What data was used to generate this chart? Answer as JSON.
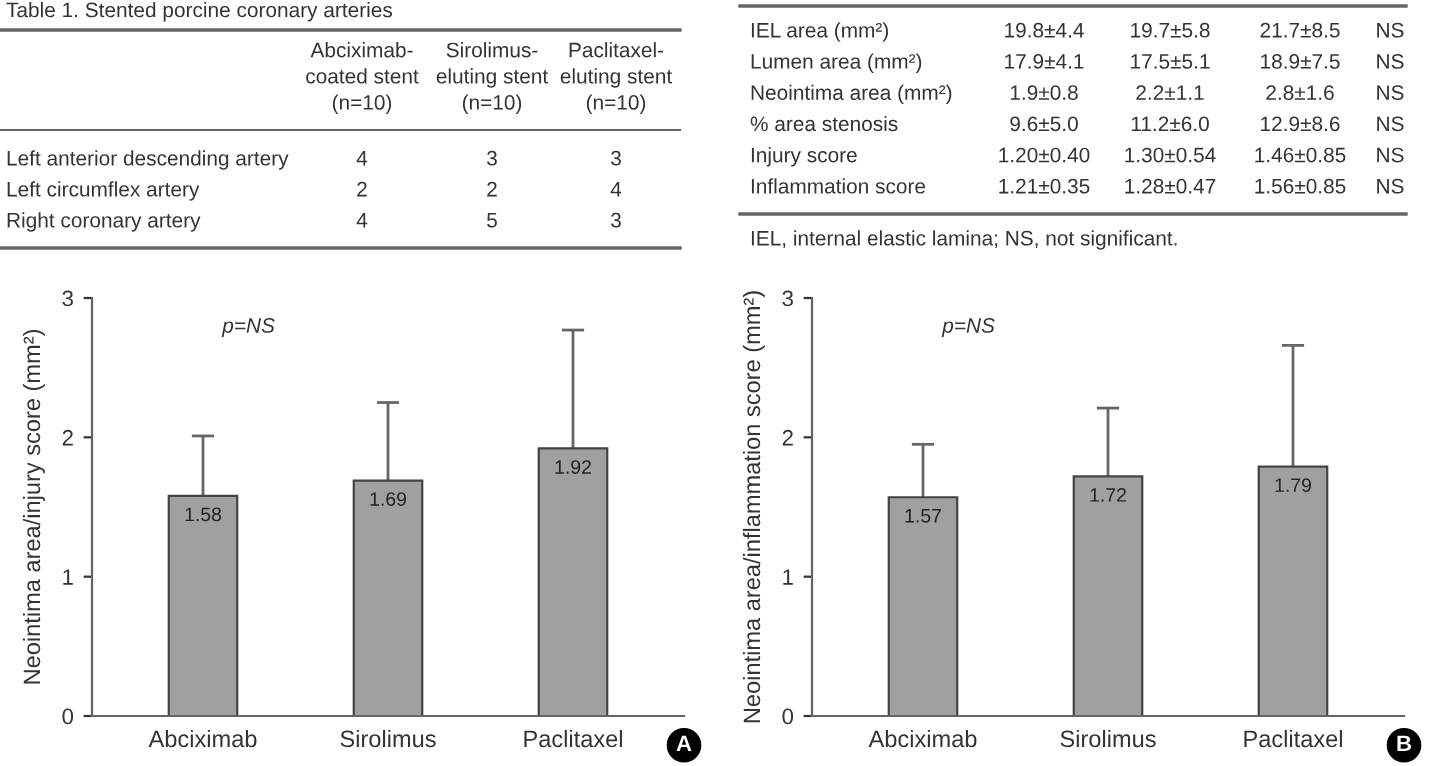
{
  "chart_data": [
    {
      "type": "other",
      "title": "Table 1. Stented porcine coronary arteries",
      "categories": [
        "Abciximab-\ncoated stent\n(n=10)",
        "Sirolimus-\neluting stent\n(n=10)",
        "Paclitaxel-\neluting stent\n(n=10)"
      ],
      "y_categories": [
        "Left anterior descending artery",
        "Left circumflex artery",
        "Right coronary artery"
      ],
      "cell_labels": [
        [
          "4",
          "3",
          "3"
        ],
        [
          "2",
          "2",
          "4"
        ],
        [
          "4",
          "5",
          "3"
        ]
      ]
    },
    {
      "type": "other",
      "y_categories": [
        "IEL area (mm²)",
        "Lumen area (mm²)",
        "Neointima area (mm²)",
        "% area stenosis",
        "Injury score",
        "Inflammation score"
      ],
      "cell_labels": [
        [
          "19.8±4.4",
          "19.7±5.8",
          "21.7±8.5",
          "NS"
        ],
        [
          "17.9±4.1",
          "17.5±5.1",
          "18.9±7.5",
          "NS"
        ],
        [
          "1.9±0.8",
          "2.2±1.1",
          "2.8±1.6",
          "NS"
        ],
        [
          "9.6±5.0",
          "11.2±6.0",
          "12.9±8.6",
          "NS"
        ],
        [
          "1.20±0.40",
          "1.30±0.54",
          "1.46±0.85",
          "NS"
        ],
        [
          "1.21±0.35",
          "1.28±0.47",
          "1.56±0.85",
          "NS"
        ]
      ],
      "annotations": [
        "IEL, internal elastic lamina; NS, not significant."
      ]
    },
    {
      "type": "bar",
      "ylabel": "Neointima area/injury score (mm²)",
      "categories": [
        "Abciximab",
        "Sirolimus",
        "Paclitaxel"
      ],
      "values": [
        1.58,
        1.69,
        1.92
      ],
      "errors": [
        0.43,
        0.56,
        0.85
      ],
      "color": "#a0a0a0",
      "ylim": [
        0,
        3
      ],
      "yticks": [
        0,
        1,
        2,
        3
      ],
      "data_labels": true,
      "grid": false,
      "legend": false,
      "annotations": [
        "p=NS",
        "A"
      ]
    },
    {
      "type": "bar",
      "ylabel": "Neointima area/inflammation score (mm²)",
      "categories": [
        "Abciximab",
        "Sirolimus",
        "Paclitaxel"
      ],
      "values": [
        1.57,
        1.72,
        1.79
      ],
      "errors": [
        0.38,
        0.49,
        0.87
      ],
      "color": "#a0a0a0",
      "ylim": [
        0,
        3
      ],
      "yticks": [
        0,
        1,
        2,
        3
      ],
      "data_labels": true,
      "grid": false,
      "legend": false,
      "annotations": [
        "p=NS",
        "B"
      ]
    }
  ]
}
